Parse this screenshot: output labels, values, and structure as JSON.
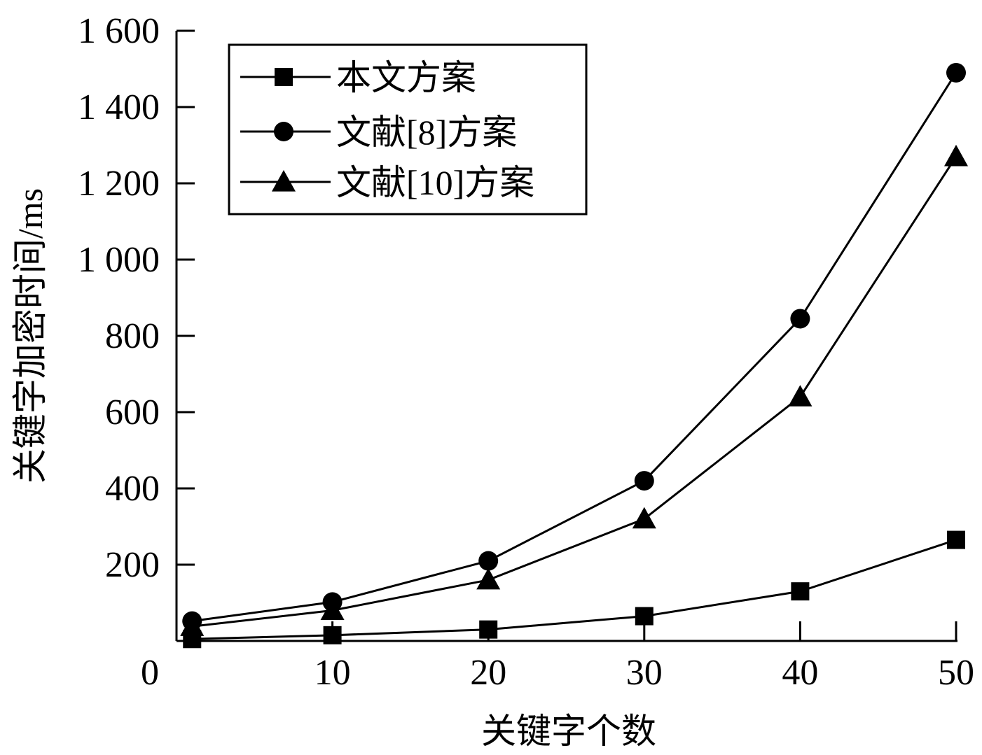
{
  "chart_data": {
    "type": "line",
    "xlabel": "关键字个数",
    "ylabel": "关键字加密时间/ms",
    "x_ticks": [
      "10",
      "20",
      "30",
      "40",
      "50"
    ],
    "y_ticks": [
      "200",
      "400",
      "600",
      "800",
      "1 000",
      "1 200",
      "1 400",
      "1 600"
    ],
    "origin_label": "0",
    "xlim": [
      0,
      50
    ],
    "ylim": [
      0,
      1600
    ],
    "grid": false,
    "legend_position": "top-left",
    "x": [
      1,
      10,
      20,
      30,
      40,
      50
    ],
    "series": [
      {
        "name": "本文方案",
        "marker": "square",
        "values": [
          5,
          15,
          30,
          65,
          130,
          265
        ]
      },
      {
        "name": "文献[8]方案",
        "marker": "circle",
        "values": [
          52,
          102,
          210,
          420,
          845,
          1490
        ]
      },
      {
        "name": "文献[10]方案",
        "marker": "triangle",
        "values": [
          38,
          80,
          160,
          320,
          640,
          1270
        ]
      }
    ],
    "colors": {
      "line": "#000000",
      "marker": "#000000",
      "background": "#ffffff"
    }
  }
}
